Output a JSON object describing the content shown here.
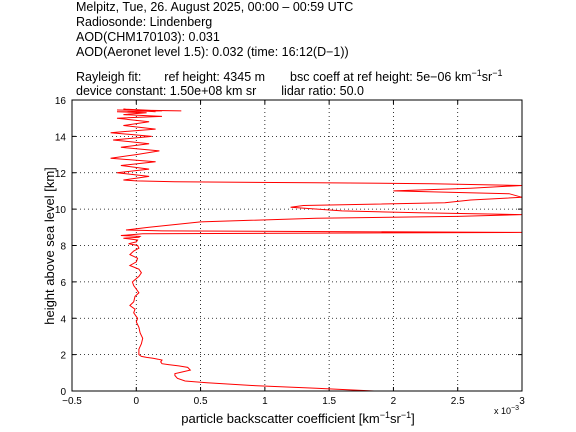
{
  "header": {
    "line1": "Melpitz, Tue, 26. August 2025, 00:00 – 00:59 UTC",
    "line2": "Radiosonde: Lindenberg",
    "line3": "AOD(CHM170103): 0.031",
    "line4": "AOD(Aeronet level 1.5): 0.032   (time: 16:12(D−1))",
    "rayleigh_label": "Rayleigh fit:",
    "ref_height": "ref height: 4345 m",
    "bsc_coeff_prefix": "bsc coeff at ref height: 5e−06 km",
    "bsc_sup1": "−1",
    "bsc_mid": "sr",
    "bsc_sup2": "−1",
    "device_constant": "device constant: 1.50e+08 km sr",
    "lidar_ratio": "lidar ratio: 50.0"
  },
  "chart_data": {
    "type": "line",
    "xlabel_main": "particle backscatter coefficient [km",
    "xlabel_sup1": "−1",
    "xlabel_mid": "sr",
    "xlabel_sup2": "−1",
    "xlabel_end": "]",
    "ylabel": "height above sea level [km]",
    "x_exponent_label": "x 10",
    "x_exponent_power": "−3",
    "xlim": [
      -0.5,
      3.0
    ],
    "ylim": [
      0,
      16
    ],
    "xticks": [
      "−0.5",
      "0",
      "0.5",
      "1",
      "1.5",
      "2",
      "2.5",
      "3"
    ],
    "xtick_values": [
      -0.5,
      0,
      0.5,
      1,
      1.5,
      2,
      2.5,
      3
    ],
    "yticks": [
      "0",
      "2",
      "4",
      "6",
      "8",
      "10",
      "12",
      "14",
      "16"
    ],
    "ytick_values": [
      0,
      2,
      4,
      6,
      8,
      10,
      12,
      14,
      16
    ],
    "grid": true,
    "line_color": "#ff0000",
    "series": [
      {
        "x": [
          1.85,
          1.4,
          0.9,
          0.55,
          0.38,
          0.32,
          0.3,
          0.3,
          0.36,
          0.42,
          0.4,
          0.33,
          0.25,
          0.2,
          0.19,
          0.2,
          0.17,
          0.13,
          0.08,
          0.04,
          0.02,
          0.02,
          0.04,
          0.05,
          0.03,
          0.02,
          0.0,
          0.01,
          -0.02,
          -0.01,
          -0.05,
          -0.02,
          -0.01,
          0.02,
          0.0,
          -0.02,
          -0.03,
          0.02,
          0.04,
          0.02,
          -0.05,
          0.0,
          0.01,
          -0.05,
          -0.02,
          0.02,
          0.01,
          -0.06,
          0.0,
          0.01,
          -0.1,
          0.02,
          0.03,
          -0.12,
          -0.03,
          0.05,
          3.0,
          0.2,
          -0.08,
          0.1,
          0.5,
          1.4,
          2.5,
          3.0,
          2.2,
          1.6,
          1.2,
          1.3,
          2.4,
          2.6,
          3.0,
          2.9,
          2.0,
          2.6,
          3.0,
          2.3,
          1.4,
          0.3,
          0.0,
          -0.1,
          0.1,
          -0.15,
          0.1,
          -0.12,
          0.15,
          -0.2,
          0.0,
          0.18,
          -0.12,
          0.1,
          -0.18,
          0.12,
          -0.2,
          0.15,
          -0.1,
          0.1,
          -0.15,
          0.2,
          -0.1,
          0.08,
          -0.15,
          0.2,
          -0.1,
          0.15,
          -0.05,
          0.35,
          -0.15
        ],
        "y": [
          0.0,
          0.15,
          0.3,
          0.45,
          0.55,
          0.7,
          0.85,
          0.95,
          1.05,
          1.15,
          1.3,
          1.38,
          1.45,
          1.5,
          1.6,
          1.7,
          1.75,
          1.8,
          1.85,
          1.9,
          2.0,
          2.3,
          2.6,
          2.9,
          3.2,
          3.5,
          3.8,
          4.0,
          4.3,
          4.5,
          4.7,
          4.9,
          5.2,
          5.4,
          5.6,
          5.8,
          6.0,
          6.3,
          6.5,
          6.7,
          6.9,
          7.1,
          7.3,
          7.5,
          7.7,
          7.85,
          8.0,
          8.1,
          8.2,
          8.3,
          8.4,
          8.45,
          8.5,
          8.55,
          8.6,
          8.65,
          8.72,
          8.8,
          8.85,
          9.0,
          9.3,
          9.5,
          9.6,
          9.7,
          9.8,
          9.9,
          10.1,
          10.2,
          10.35,
          10.5,
          10.65,
          10.85,
          11.0,
          11.15,
          11.3,
          11.4,
          11.45,
          11.5,
          11.55,
          11.6,
          11.8,
          12.0,
          12.2,
          12.4,
          12.6,
          12.8,
          13.0,
          13.2,
          13.4,
          13.6,
          13.8,
          14.0,
          14.2,
          14.4,
          14.6,
          14.8,
          15.0,
          15.1,
          15.2,
          15.3,
          15.35,
          15.4,
          15.5,
          15.35,
          15.45,
          15.4,
          15.45
        ]
      }
    ]
  }
}
